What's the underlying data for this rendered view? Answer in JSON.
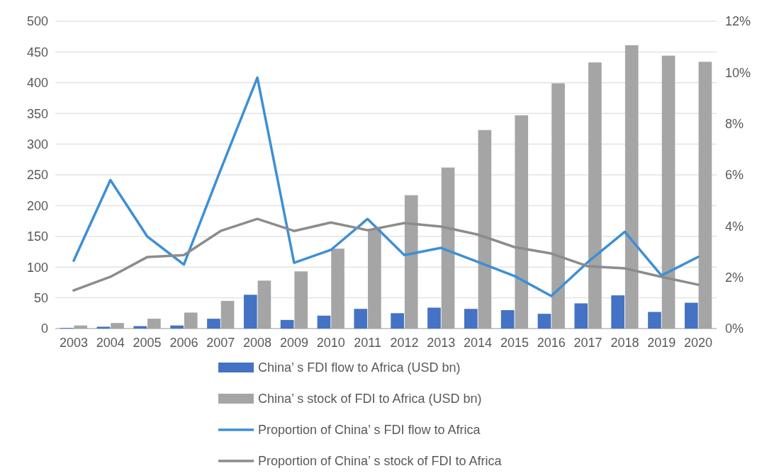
{
  "chart_data": {
    "type": "bar",
    "categories": [
      "2003",
      "2004",
      "2005",
      "2006",
      "2007",
      "2008",
      "2009",
      "2010",
      "2011",
      "2012",
      "2013",
      "2014",
      "2015",
      "2016",
      "2017",
      "2018",
      "2019",
      "2020"
    ],
    "series": [
      {
        "name": "China’ s FDI flow to Africa (USD bn)",
        "color": "#4472c4",
        "values": [
          1,
          3,
          4,
          5,
          16,
          55,
          14,
          21,
          32,
          25,
          34,
          32,
          30,
          24,
          41,
          54,
          27,
          42
        ]
      },
      {
        "name": "China’ s stock of FDI to Africa (USD bn)",
        "color": "#a5a5a5",
        "values": [
          5,
          9,
          16,
          26,
          45,
          78,
          93,
          130,
          162,
          217,
          262,
          323,
          347,
          399,
          433,
          461,
          444,
          434
        ]
      },
      {
        "name": "Proportion of China’ s FDI flow to Africa",
        "type": "line",
        "axis": "y2",
        "color": "#3d8fd6",
        "values": [
          2.65,
          5.8,
          3.6,
          2.5,
          6.2,
          9.8,
          2.57,
          3.07,
          4.28,
          2.87,
          3.15,
          2.6,
          2.05,
          1.27,
          2.6,
          3.78,
          2.07,
          2.8
        ]
      },
      {
        "name": "Proportion of China’ s stock of FDI to Africa",
        "type": "line",
        "axis": "y2",
        "color": "#8c8c8c",
        "values": [
          1.49,
          2.02,
          2.79,
          2.87,
          3.81,
          4.28,
          3.81,
          4.14,
          3.84,
          4.12,
          3.98,
          3.67,
          3.18,
          2.93,
          2.43,
          2.35,
          2.02,
          1.71
        ]
      }
    ],
    "ylim": [
      0,
      500
    ],
    "yticks": [
      0,
      50,
      100,
      150,
      200,
      250,
      300,
      350,
      400,
      450,
      500
    ],
    "y2lim": [
      0,
      12
    ],
    "y2ticks": [
      {
        "value": 0,
        "label": "0%"
      },
      {
        "value": 2,
        "label": "2%"
      },
      {
        "value": 4,
        "label": "4%"
      },
      {
        "value": 6,
        "label": "6%"
      },
      {
        "value": 8,
        "label": "8%"
      },
      {
        "value": 10,
        "label": "10%"
      },
      {
        "value": 12,
        "label": "12%"
      }
    ],
    "grid": "y",
    "legend": "bottom",
    "marker": "none",
    "line_style": "solid"
  }
}
